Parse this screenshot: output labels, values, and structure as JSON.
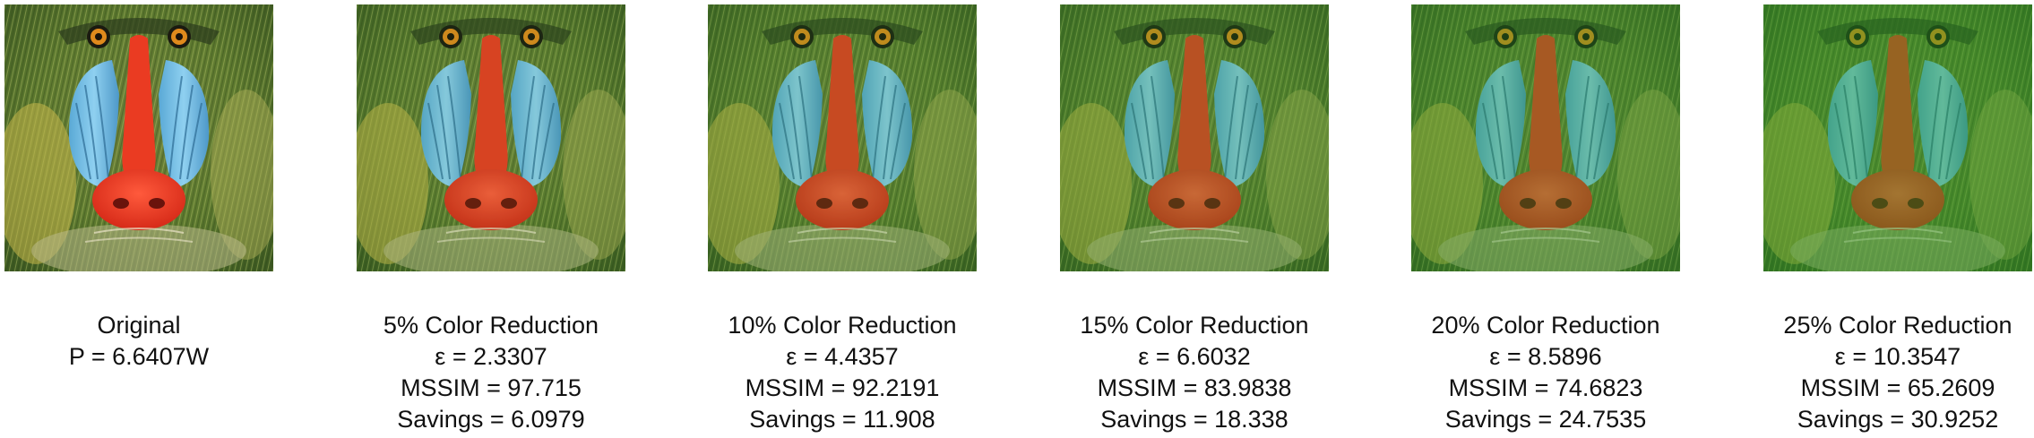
{
  "panels": [
    {
      "title": "Original",
      "lines": [
        "P = 6.6407W"
      ],
      "tint": "#2f7a2e",
      "tint_opacity": 0.0
    },
    {
      "title": "5% Color Reduction",
      "lines": [
        "ε = 2.3307",
        "MSSIM = 97.715",
        "Savings = 6.0979"
      ],
      "tint": "#2f8a2a",
      "tint_opacity": 0.1
    },
    {
      "title": "10% Color Reduction",
      "lines": [
        "ε = 4.4357",
        "MSSIM = 92.2191",
        "Savings = 11.908"
      ],
      "tint": "#2f8f28",
      "tint_opacity": 0.18
    },
    {
      "title": "15% Color Reduction",
      "lines": [
        "ε = 6.6032",
        "MSSIM = 83.9838",
        "Savings = 18.338"
      ],
      "tint": "#2a9228",
      "tint_opacity": 0.26
    },
    {
      "title": "20% Color Reduction",
      "lines": [
        "ε = 8.5896",
        "MSSIM = 74.6823",
        "Savings = 24.7535"
      ],
      "tint": "#279526",
      "tint_opacity": 0.34
    },
    {
      "title": "25% Color Reduction",
      "lines": [
        "ε = 10.3547",
        "MSSIM = 65.2609",
        "Savings = 30.9252"
      ],
      "tint": "#239a24",
      "tint_opacity": 0.42
    }
  ]
}
